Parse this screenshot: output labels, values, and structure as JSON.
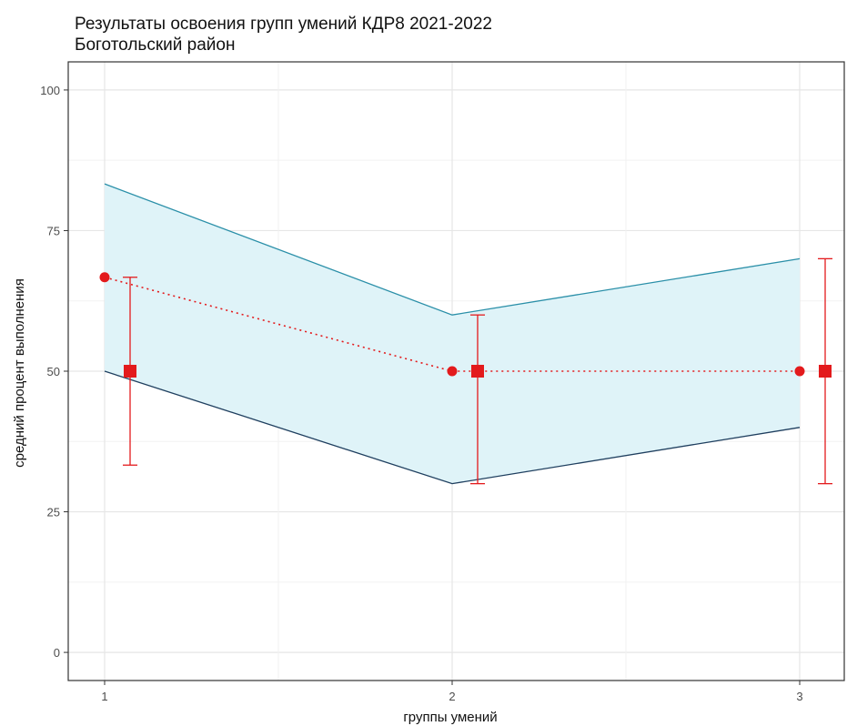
{
  "chart_data": {
    "type": "line",
    "title": "Результаты освоения групп умений КДР8 2021-2022",
    "subtitle": "Боготольский район",
    "xlabel": "группы умений",
    "ylabel": "средний процент выполнения",
    "x": [
      1,
      2,
      3
    ],
    "x_ticks": [
      "1",
      "2",
      "3"
    ],
    "ylim": [
      -5,
      105
    ],
    "y_ticks": [
      0,
      25,
      50,
      75,
      100
    ],
    "grid": true,
    "legend": "none",
    "band": {
      "upper": [
        83.3,
        60,
        70
      ],
      "lower": [
        50,
        30,
        40
      ],
      "fill_color": "#dff3f8",
      "upper_color": "#2a8fa8",
      "lower_color": "#1f3f5f"
    },
    "points": {
      "values": [
        66.7,
        50,
        50
      ],
      "color": "#e31a1c",
      "line_style": "dotted"
    },
    "error_bars": {
      "center": [
        50,
        50,
        50
      ],
      "low": [
        33.3,
        30,
        30
      ],
      "high": [
        66.7,
        60,
        70
      ],
      "color": "#e31a1c"
    }
  }
}
